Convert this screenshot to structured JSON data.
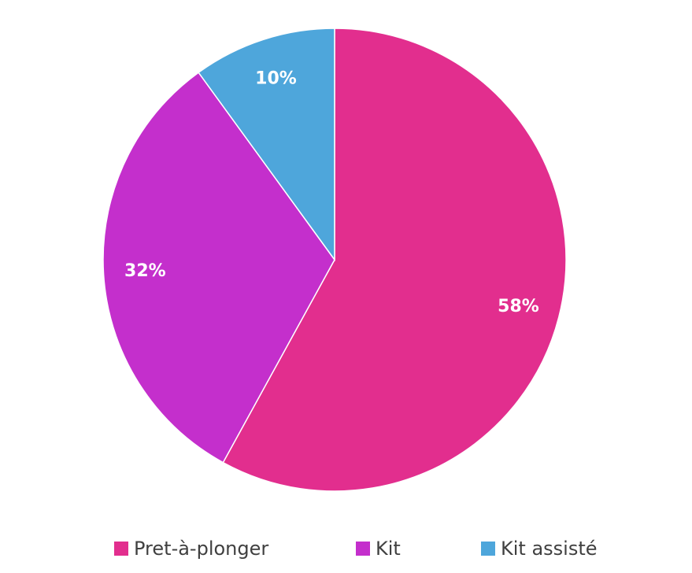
{
  "chart_data": {
    "type": "pie",
    "categories": [
      "Pret-à-plonger",
      "Kit",
      "Kit assisté"
    ],
    "values": [
      58,
      32,
      10
    ],
    "value_labels": [
      "58%",
      "32%",
      "10%"
    ],
    "colors": [
      "#e22e8e",
      "#c42fcc",
      "#4ea6db"
    ],
    "legend": "bottom"
  }
}
